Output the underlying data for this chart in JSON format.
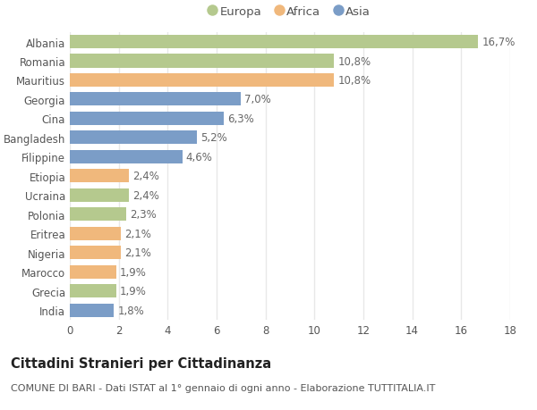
{
  "categories": [
    "Albania",
    "Romania",
    "Mauritius",
    "Georgia",
    "Cina",
    "Bangladesh",
    "Filippine",
    "Etiopia",
    "Ucraina",
    "Polonia",
    "Eritrea",
    "Nigeria",
    "Marocco",
    "Grecia",
    "India"
  ],
  "values": [
    16.7,
    10.8,
    10.8,
    7.0,
    6.3,
    5.2,
    4.6,
    2.4,
    2.4,
    2.3,
    2.1,
    2.1,
    1.9,
    1.9,
    1.8
  ],
  "labels": [
    "16,7%",
    "10,8%",
    "10,8%",
    "7,0%",
    "6,3%",
    "5,2%",
    "4,6%",
    "2,4%",
    "2,4%",
    "2,3%",
    "2,1%",
    "2,1%",
    "1,9%",
    "1,9%",
    "1,8%"
  ],
  "continents": [
    "Europa",
    "Europa",
    "Africa",
    "Asia",
    "Asia",
    "Asia",
    "Asia",
    "Africa",
    "Europa",
    "Europa",
    "Africa",
    "Africa",
    "Africa",
    "Europa",
    "Asia"
  ],
  "colors": {
    "Europa": "#b5c98e",
    "Africa": "#f0b87c",
    "Asia": "#7b9dc7"
  },
  "legend_order": [
    "Europa",
    "Africa",
    "Asia"
  ],
  "xlim": [
    0,
    18
  ],
  "xticks": [
    0,
    2,
    4,
    6,
    8,
    10,
    12,
    14,
    16,
    18
  ],
  "title": "Cittadini Stranieri per Cittadinanza",
  "subtitle": "COMUNE DI BARI - Dati ISTAT al 1° gennaio di ogni anno - Elaborazione TUTTITALIA.IT",
  "background_color": "#ffffff",
  "bar_height": 0.7,
  "grid_color": "#e8e8e8",
  "label_fontsize": 8.5,
  "tick_fontsize": 8.5,
  "title_fontsize": 10.5,
  "subtitle_fontsize": 8.0
}
